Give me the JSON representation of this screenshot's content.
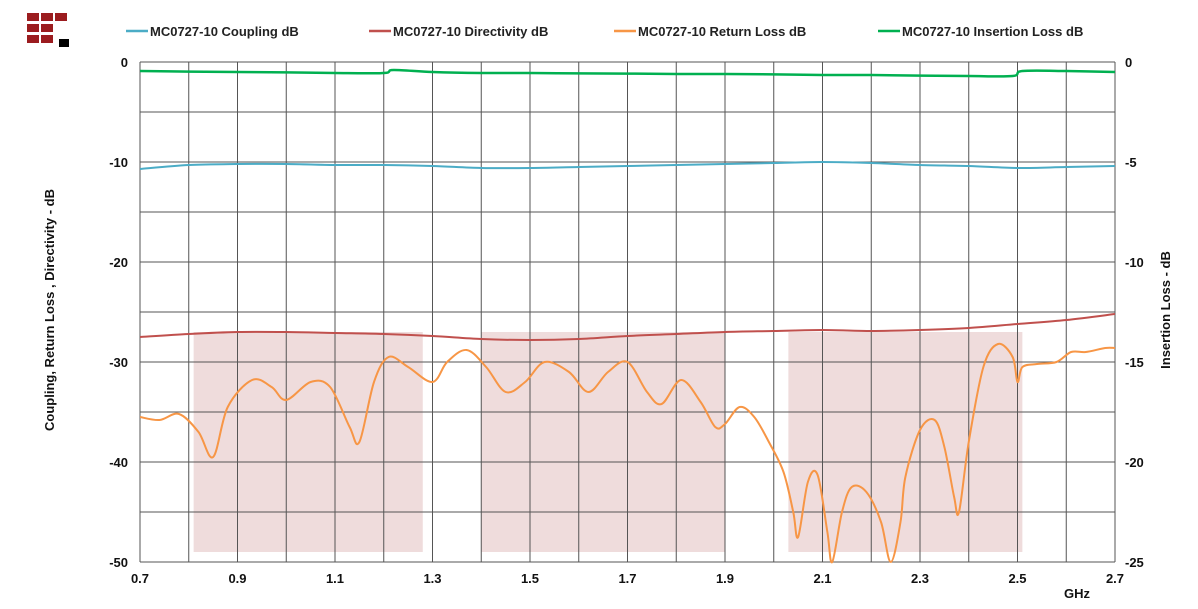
{
  "chart_data": {
    "type": "line",
    "xlabel": "GHz",
    "ylabel": "Coupling, Return Loss , Directivity - dB",
    "y2label": "Insertion Loss - dB",
    "xlim": [
      0.7,
      2.7
    ],
    "ylim": [
      -50,
      0
    ],
    "y2lim": [
      -25,
      0
    ],
    "x_ticks": [
      "0.7",
      "0.9",
      "1.1",
      "1.3",
      "1.5",
      "1.7",
      "1.9",
      "2.1",
      "2.3",
      "2.5",
      "2.7"
    ],
    "y_ticks": [
      "0",
      "-10",
      "-20",
      "-30",
      "-40",
      "-50"
    ],
    "y2_ticks": [
      "0",
      "-5",
      "-10",
      "-15",
      "-20",
      "-25"
    ],
    "grid": true,
    "legend_position": "top",
    "shaded_bands": [
      {
        "x": [
          0.81,
          1.28
        ],
        "y": [
          -49,
          -27
        ]
      },
      {
        "x": [
          1.4,
          1.9
        ],
        "y": [
          -49,
          -27
        ]
      },
      {
        "x": [
          2.03,
          2.51
        ],
        "y": [
          -49,
          -27
        ]
      }
    ],
    "band_color": "#efdcdc",
    "series": [
      {
        "name": "MC0727-10 Coupling dB",
        "color": "#4bacc6",
        "axis": "left",
        "x": [
          0.7,
          0.8,
          0.9,
          1.0,
          1.1,
          1.2,
          1.3,
          1.4,
          1.5,
          1.6,
          1.7,
          1.8,
          1.9,
          2.0,
          2.1,
          2.2,
          2.3,
          2.4,
          2.5,
          2.6,
          2.7
        ],
        "y": [
          -10.7,
          -10.3,
          -10.2,
          -10.2,
          -10.3,
          -10.3,
          -10.4,
          -10.6,
          -10.6,
          -10.5,
          -10.4,
          -10.3,
          -10.2,
          -10.1,
          -10.0,
          -10.1,
          -10.3,
          -10.4,
          -10.6,
          -10.5,
          -10.4
        ]
      },
      {
        "name": "MC0727-10 Directivity dB",
        "color": "#c0504d",
        "axis": "left",
        "x": [
          0.7,
          0.8,
          0.9,
          1.0,
          1.1,
          1.2,
          1.3,
          1.4,
          1.5,
          1.6,
          1.7,
          1.8,
          1.9,
          2.0,
          2.1,
          2.2,
          2.3,
          2.4,
          2.5,
          2.6,
          2.7
        ],
        "y": [
          -27.5,
          -27.2,
          -27.0,
          -27.0,
          -27.1,
          -27.2,
          -27.4,
          -27.7,
          -27.8,
          -27.7,
          -27.4,
          -27.2,
          -27.0,
          -26.9,
          -26.8,
          -26.9,
          -26.8,
          -26.6,
          -26.2,
          -25.8,
          -25.2
        ]
      },
      {
        "name": "MC0727-10 Return Loss dB",
        "color": "#f79646",
        "axis": "left",
        "x": [
          0.7,
          0.74,
          0.78,
          0.82,
          0.85,
          0.88,
          0.93,
          0.97,
          1.0,
          1.05,
          1.09,
          1.13,
          1.15,
          1.18,
          1.21,
          1.25,
          1.3,
          1.33,
          1.37,
          1.41,
          1.45,
          1.49,
          1.53,
          1.58,
          1.62,
          1.66,
          1.7,
          1.74,
          1.77,
          1.81,
          1.85,
          1.88,
          1.9,
          1.93,
          1.96,
          1.99,
          2.02,
          2.04,
          2.05,
          2.07,
          2.09,
          2.11,
          2.12,
          2.14,
          2.16,
          2.19,
          2.22,
          2.24,
          2.26,
          2.27,
          2.3,
          2.33,
          2.35,
          2.37,
          2.38,
          2.4,
          2.43,
          2.46,
          2.49,
          2.5,
          2.51,
          2.54,
          2.58,
          2.61,
          2.64,
          2.68,
          2.7
        ],
        "y": [
          -35.5,
          -35.8,
          -35.2,
          -37.0,
          -39.5,
          -34.5,
          -31.8,
          -32.5,
          -33.8,
          -32.0,
          -32.5,
          -36.5,
          -38.0,
          -32.0,
          -29.5,
          -30.5,
          -32.0,
          -30.0,
          -28.8,
          -30.5,
          -33.0,
          -32.0,
          -30.0,
          -31.0,
          -33.0,
          -31.0,
          -30.0,
          -33.0,
          -34.2,
          -31.8,
          -34.0,
          -36.5,
          -36.2,
          -34.5,
          -35.5,
          -38.0,
          -41.0,
          -45.0,
          -47.5,
          -42.0,
          -41.3,
          -47.0,
          -50.0,
          -45.0,
          -42.5,
          -43.0,
          -46.0,
          -50.0,
          -46.0,
          -41.5,
          -36.8,
          -35.8,
          -38.5,
          -43.5,
          -45.0,
          -38.0,
          -30.5,
          -28.2,
          -29.5,
          -32.0,
          -30.5,
          -30.2,
          -30.0,
          -29.0,
          -29.0,
          -28.6,
          -28.6
        ]
      },
      {
        "name": "MC0727-10 Insertion Loss dB",
        "color": "#00b050",
        "axis": "right",
        "x": [
          0.7,
          0.8,
          0.9,
          1.0,
          1.1,
          1.2,
          1.22,
          1.3,
          1.4,
          1.5,
          1.6,
          1.7,
          1.8,
          1.9,
          2.0,
          2.1,
          2.2,
          2.3,
          2.4,
          2.49,
          2.51,
          2.6,
          2.7
        ],
        "y": [
          -0.45,
          -0.48,
          -0.5,
          -0.52,
          -0.55,
          -0.55,
          -0.4,
          -0.5,
          -0.55,
          -0.55,
          -0.57,
          -0.58,
          -0.6,
          -0.6,
          -0.62,
          -0.65,
          -0.65,
          -0.68,
          -0.7,
          -0.7,
          -0.45,
          -0.45,
          -0.5
        ]
      }
    ]
  },
  "logo": {
    "dark_color": "#9b1c1f",
    "black_color": "#000000"
  }
}
